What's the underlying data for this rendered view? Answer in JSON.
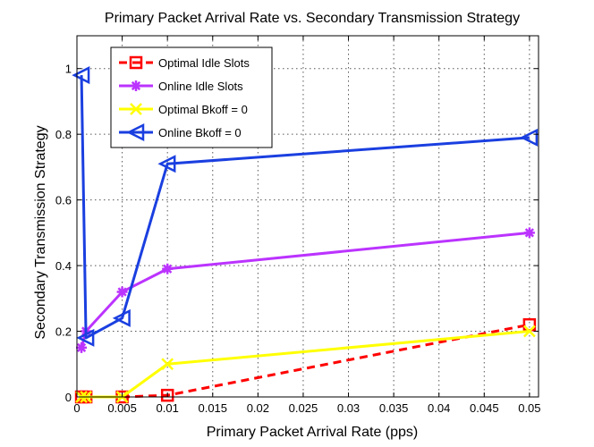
{
  "chart_data": {
    "type": "line",
    "title": "Primary Packet Arrival Rate vs. Secondary Transmission Strategy",
    "xlabel": "Primary Packet Arrival Rate (pps)",
    "ylabel": "Secondary Transmission Strategy",
    "xlim": [
      0,
      0.051
    ],
    "ylim": [
      0,
      1.1
    ],
    "xticks": [
      0,
      0.005,
      0.01,
      0.015,
      0.02,
      0.025,
      0.03,
      0.035,
      0.04,
      0.045,
      0.05
    ],
    "xtick_labels": [
      "0",
      "0.005",
      "0.01",
      "0.015",
      "0.02",
      "0.025",
      "0.03",
      "0.035",
      "0.04",
      "0.045",
      "0.05"
    ],
    "yticks": [
      0,
      0.2,
      0.4,
      0.6,
      0.8,
      1
    ],
    "ytick_labels": [
      "0",
      "0.2",
      "0.4",
      "0.6",
      "0.8",
      "1"
    ],
    "grid": true,
    "legend_position": "top-left",
    "series": [
      {
        "name": "Optimal Idle Slots",
        "color": "#ff0000",
        "line": "dashed",
        "marker": "square",
        "x": [
          0.0005,
          0.001,
          0.005,
          0.01,
          0.05
        ],
        "y": [
          0.0,
          0.0,
          0.0,
          0.005,
          0.22
        ]
      },
      {
        "name": "Online Idle Slots",
        "color": "#bb33ff",
        "line": "solid",
        "marker": "asterisk",
        "x": [
          0.0005,
          0.001,
          0.005,
          0.01,
          0.05
        ],
        "y": [
          0.15,
          0.2,
          0.32,
          0.39,
          0.5
        ]
      },
      {
        "name": "Optimal Bkoff = 0",
        "color": "#ffff00",
        "line": "solid",
        "marker": "x",
        "x": [
          0.0005,
          0.001,
          0.005,
          0.01,
          0.05
        ],
        "y": [
          0.0,
          0.0,
          0.0,
          0.1,
          0.2
        ]
      },
      {
        "name": "Online Bkoff = 0",
        "color": "#1a3fe0",
        "line": "solid",
        "marker": "triangle-left",
        "x": [
          0.0005,
          0.001,
          0.005,
          0.01,
          0.05
        ],
        "y": [
          0.98,
          0.18,
          0.24,
          0.71,
          0.79
        ]
      }
    ]
  }
}
